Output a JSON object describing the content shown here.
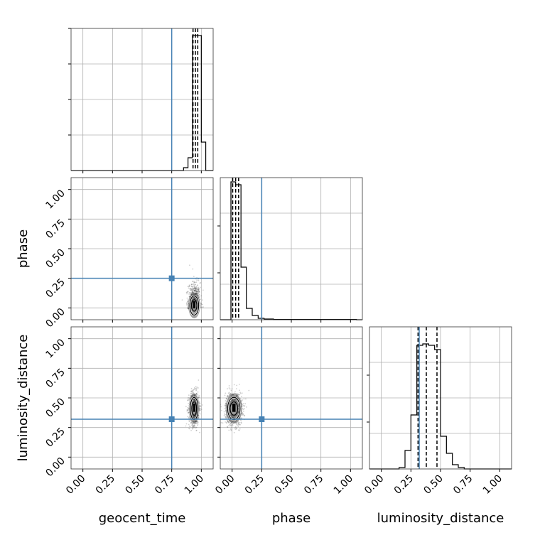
{
  "chart_data": {
    "type": "corner",
    "parameters": [
      "geocent_time",
      "phase",
      "luminosity_distance"
    ],
    "truths": [
      0.75,
      0.25,
      0.32
    ],
    "truth_color": "#4682b4",
    "axis_range": [
      -0.1,
      1.1
    ],
    "tick_values": [
      0.0,
      0.25,
      0.5,
      0.75,
      1.0
    ],
    "tick_labels": [
      "0.00",
      "0.25",
      "0.50",
      "0.75",
      "1.00"
    ],
    "grid": true,
    "histograms": [
      {
        "parameter": "geocent_time",
        "bin_edges": [
          0.85,
          0.8875,
          0.925,
          0.9625,
          1.0,
          1.0375
        ],
        "counts": [
          0.02,
          0.09,
          0.95,
          0.95,
          0.2
        ],
        "quantiles": [
          0.93,
          0.95,
          0.97
        ]
      },
      {
        "parameter": "phase",
        "bin_edges": [
          -0.05,
          -0.01,
          0.03,
          0.075,
          0.12,
          0.17,
          0.22,
          0.27,
          0.35,
          1.05
        ],
        "counts": [
          0.0,
          0.97,
          0.95,
          0.37,
          0.08,
          0.03,
          0.01,
          0.005,
          0.002
        ],
        "quantiles": [
          0.005,
          0.03,
          0.055
        ]
      },
      {
        "parameter": "luminosity_distance",
        "bin_edges": [
          0.15,
          0.2,
          0.25,
          0.3,
          0.35,
          0.4,
          0.45,
          0.5,
          0.55,
          0.6,
          0.65,
          0.7
        ],
        "counts": [
          0.01,
          0.13,
          0.38,
          0.87,
          0.88,
          0.87,
          0.84,
          0.23,
          0.11,
          0.03,
          0.01
        ],
        "quantiles": [
          0.31,
          0.38,
          0.47
        ]
      }
    ],
    "scatter_panels": [
      {
        "x": "geocent_time",
        "y": "phase",
        "center": [
          0.94,
          0.02
        ],
        "spread": [
          0.025,
          0.06
        ],
        "n_points": 700
      },
      {
        "x": "geocent_time",
        "y": "luminosity_distance",
        "center": [
          0.94,
          0.41
        ],
        "spread": [
          0.022,
          0.07
        ],
        "n_points": 900
      },
      {
        "x": "phase",
        "y": "luminosity_distance",
        "center": [
          0.015,
          0.41
        ],
        "spread": [
          0.035,
          0.07
        ],
        "n_points": 900
      }
    ]
  }
}
